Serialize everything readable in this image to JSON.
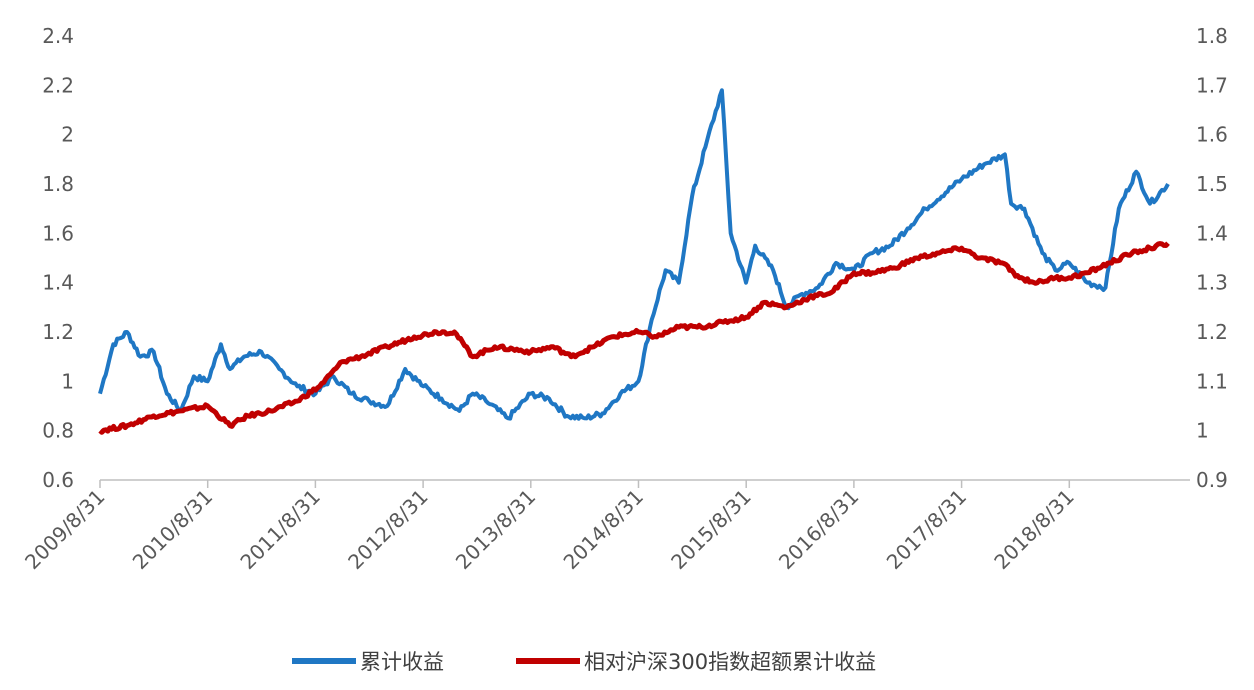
{
  "chart_data": {
    "type": "line",
    "title": "",
    "xlabel": "",
    "ylabel": "",
    "y2label": "",
    "grid": false,
    "legend_position": "bottom",
    "x_tick_labels": [
      "2009/8/31",
      "2010/8/31",
      "2011/8/31",
      "2012/8/31",
      "2013/8/31",
      "2014/8/31",
      "2015/8/31",
      "2016/8/31",
      "2017/8/31",
      "2018/8/31"
    ],
    "y_left": {
      "range": [
        0.6,
        2.4
      ],
      "ticks": [
        "0.6",
        "0.8",
        "1",
        "1.2",
        "1.4",
        "1.6",
        "1.8",
        "2",
        "2.2",
        "2.4"
      ]
    },
    "y_right": {
      "range": [
        0.9,
        1.8
      ],
      "ticks": [
        "0.9",
        "1",
        "1.1",
        "1.2",
        "1.3",
        "1.4",
        "1.5",
        "1.6",
        "1.7",
        "1.8"
      ]
    },
    "series": [
      {
        "name": "累计收益",
        "axis": "left",
        "color": "#1f77c4",
        "x": [
          "2009-08-31",
          "2009-10-15",
          "2009-12-01",
          "2010-01-15",
          "2010-03-01",
          "2010-04-15",
          "2010-06-01",
          "2010-07-15",
          "2010-08-31",
          "2010-10-15",
          "2010-11-15",
          "2011-01-01",
          "2011-03-01",
          "2011-05-01",
          "2011-07-01",
          "2011-09-01",
          "2011-11-01",
          "2012-01-01",
          "2012-03-01",
          "2012-05-01",
          "2012-07-01",
          "2012-09-01",
          "2012-11-01",
          "2013-01-01",
          "2013-02-15",
          "2013-04-01",
          "2013-06-15",
          "2013-08-31",
          "2013-11-01",
          "2014-01-01",
          "2014-03-01",
          "2014-05-01",
          "2014-07-01",
          "2014-08-31",
          "2014-10-15",
          "2014-12-01",
          "2015-01-15",
          "2015-03-01",
          "2015-04-15",
          "2015-06-10",
          "2015-07-10",
          "2015-08-31",
          "2015-10-01",
          "2015-12-01",
          "2016-01-15",
          "2016-03-01",
          "2016-05-01",
          "2016-07-01",
          "2016-08-31",
          "2016-11-01",
          "2017-01-01",
          "2017-03-01",
          "2017-05-01",
          "2017-08-31",
          "2017-11-15",
          "2018-01-25",
          "2018-02-15",
          "2018-04-01",
          "2018-06-01",
          "2018-07-15",
          "2018-08-31",
          "2018-11-01",
          "2019-01-01",
          "2019-02-15",
          "2019-04-15",
          "2019-06-01",
          "2019-08-01"
        ],
        "values": [
          0.95,
          1.15,
          1.2,
          1.1,
          1.12,
          0.95,
          0.88,
          1.02,
          1.0,
          1.15,
          1.05,
          1.1,
          1.12,
          1.05,
          0.98,
          0.95,
          1.02,
          0.95,
          0.92,
          0.9,
          1.05,
          0.98,
          0.93,
          0.88,
          0.95,
          0.92,
          0.85,
          0.95,
          0.93,
          0.86,
          0.85,
          0.87,
          0.95,
          1.0,
          1.25,
          1.45,
          1.4,
          1.75,
          1.95,
          2.18,
          1.6,
          1.4,
          1.55,
          1.45,
          1.3,
          1.35,
          1.38,
          1.48,
          1.45,
          1.52,
          1.55,
          1.62,
          1.7,
          1.82,
          1.88,
          1.92,
          1.72,
          1.7,
          1.52,
          1.45,
          1.48,
          1.4,
          1.38,
          1.7,
          1.85,
          1.72,
          1.8
        ]
      },
      {
        "name": "相对沪深300指数超额累计收益",
        "axis": "right",
        "color": "#c00000",
        "x": [
          "2009-08-31",
          "2009-12-01",
          "2010-03-01",
          "2010-06-01",
          "2010-08-31",
          "2010-11-15",
          "2011-01-15",
          "2011-04-01",
          "2011-07-01",
          "2011-09-15",
          "2011-12-01",
          "2012-02-01",
          "2012-05-01",
          "2012-08-01",
          "2012-10-15",
          "2012-12-15",
          "2013-02-15",
          "2013-05-01",
          "2013-08-31",
          "2013-11-15",
          "2014-01-15",
          "2014-04-01",
          "2014-06-01",
          "2014-08-31",
          "2014-11-01",
          "2015-01-15",
          "2015-04-01",
          "2015-06-15",
          "2015-08-31",
          "2015-11-01",
          "2016-01-15",
          "2016-04-01",
          "2016-06-15",
          "2016-08-31",
          "2016-11-01",
          "2017-01-15",
          "2017-04-01",
          "2017-06-15",
          "2017-08-31",
          "2017-11-01",
          "2018-01-15",
          "2018-03-15",
          "2018-05-15",
          "2018-07-15",
          "2018-08-31",
          "2018-11-01",
          "2019-01-15",
          "2019-04-01",
          "2019-06-01",
          "2019-08-01"
        ],
        "values": [
          1.0,
          1.01,
          1.03,
          1.04,
          1.05,
          1.01,
          1.03,
          1.04,
          1.06,
          1.09,
          1.14,
          1.15,
          1.17,
          1.19,
          1.2,
          1.2,
          1.15,
          1.17,
          1.16,
          1.17,
          1.15,
          1.17,
          1.19,
          1.2,
          1.19,
          1.21,
          1.21,
          1.22,
          1.23,
          1.26,
          1.25,
          1.27,
          1.28,
          1.32,
          1.32,
          1.33,
          1.35,
          1.36,
          1.37,
          1.35,
          1.34,
          1.31,
          1.3,
          1.31,
          1.31,
          1.32,
          1.34,
          1.36,
          1.37,
          1.38
        ]
      }
    ]
  }
}
